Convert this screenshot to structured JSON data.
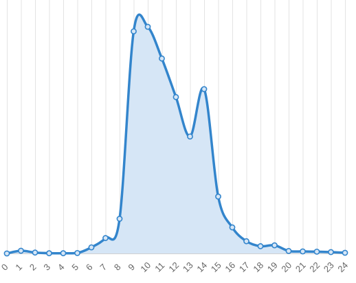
{
  "chart_data": {
    "type": "area",
    "title": "",
    "xlabel": "",
    "ylabel": "",
    "grid": "vertical",
    "legend": "none",
    "x": [
      "0",
      "1",
      "2",
      "3",
      "4",
      "5",
      "6",
      "7",
      "8",
      "9",
      "10",
      "11",
      "12",
      "13",
      "14",
      "15",
      "16",
      "17",
      "18",
      "19",
      "20",
      "21",
      "22",
      "23",
      "24"
    ],
    "ylim": [
      0,
      100
    ],
    "series": [
      {
        "values": [
          0,
          1.2,
          0.4,
          0.1,
          0.1,
          0.2,
          2.7,
          6.8,
          15.3,
          98.0,
          100.0,
          86.0,
          69.0,
          51.6,
          72.5,
          25.1,
          11.5,
          5.4,
          3.2,
          3.6,
          1.1,
          0.9,
          0.8,
          0.6,
          0.3
        ]
      }
    ]
  },
  "colors": {
    "line": "#3385cc",
    "fill": "#d6e6f6",
    "point_fill": "#d6e6f6",
    "grid": "#e3e3e3",
    "tick_text": "#666666"
  }
}
